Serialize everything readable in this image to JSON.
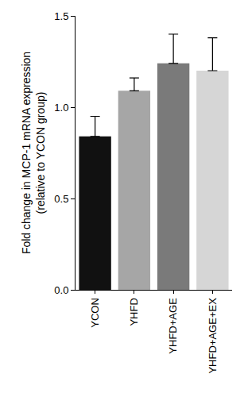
{
  "chart_data": {
    "type": "bar",
    "y_label": [
      "Fold change in MCP-1 mRNA expression",
      "(relative to YCON group)"
    ],
    "categories": [
      "YCON",
      "YHFD",
      "YHFD+AGE",
      "YHFD+AGE+EX"
    ],
    "values": [
      0.84,
      1.09,
      1.24,
      1.2
    ],
    "errors": [
      0.11,
      0.07,
      0.16,
      0.18
    ],
    "colors": [
      "#111111",
      "#a6a6a6",
      "#7a7a7a",
      "#d6d6d6"
    ],
    "ylim": [
      0,
      1.5
    ],
    "yticks": [
      {
        "value": 0,
        "label": "0.0"
      },
      0.5,
      {
        "value": 1,
        "label": "1.0"
      },
      1.5
    ],
    "grid": false
  }
}
